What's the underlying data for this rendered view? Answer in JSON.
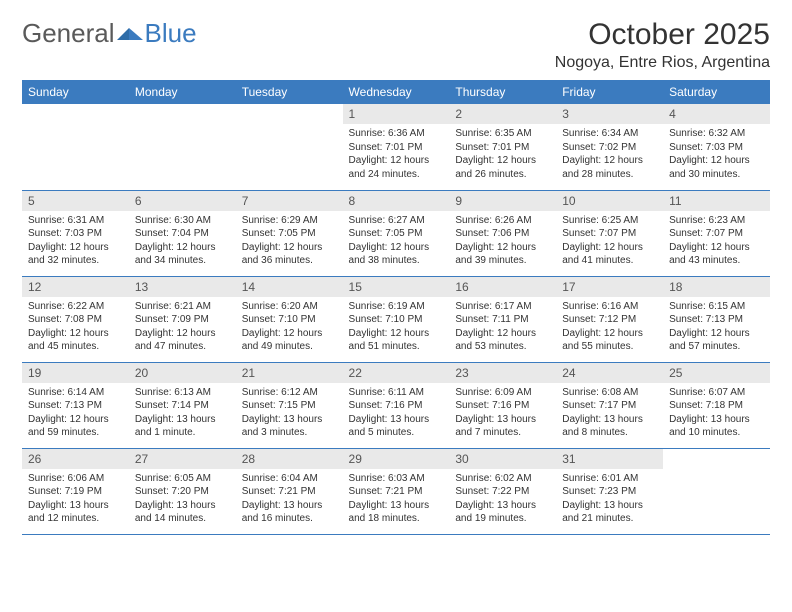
{
  "logo": {
    "part1": "General",
    "part2": "Blue"
  },
  "title": "October 2025",
  "location": "Nogoya, Entre Rios, Argentina",
  "colors": {
    "header_bg": "#3b7bbf",
    "header_fg": "#ffffff",
    "daynum_bg": "#e9e9e9",
    "row_border": "#3b7bbf",
    "logo_gray": "#5a5a5a",
    "logo_blue": "#3b7bbf"
  },
  "weekdays": [
    "Sunday",
    "Monday",
    "Tuesday",
    "Wednesday",
    "Thursday",
    "Friday",
    "Saturday"
  ],
  "weeks": [
    [
      null,
      null,
      null,
      {
        "day": "1",
        "sunrise": "Sunrise: 6:36 AM",
        "sunset": "Sunset: 7:01 PM",
        "daylight": "Daylight: 12 hours and 24 minutes."
      },
      {
        "day": "2",
        "sunrise": "Sunrise: 6:35 AM",
        "sunset": "Sunset: 7:01 PM",
        "daylight": "Daylight: 12 hours and 26 minutes."
      },
      {
        "day": "3",
        "sunrise": "Sunrise: 6:34 AM",
        "sunset": "Sunset: 7:02 PM",
        "daylight": "Daylight: 12 hours and 28 minutes."
      },
      {
        "day": "4",
        "sunrise": "Sunrise: 6:32 AM",
        "sunset": "Sunset: 7:03 PM",
        "daylight": "Daylight: 12 hours and 30 minutes."
      }
    ],
    [
      {
        "day": "5",
        "sunrise": "Sunrise: 6:31 AM",
        "sunset": "Sunset: 7:03 PM",
        "daylight": "Daylight: 12 hours and 32 minutes."
      },
      {
        "day": "6",
        "sunrise": "Sunrise: 6:30 AM",
        "sunset": "Sunset: 7:04 PM",
        "daylight": "Daylight: 12 hours and 34 minutes."
      },
      {
        "day": "7",
        "sunrise": "Sunrise: 6:29 AM",
        "sunset": "Sunset: 7:05 PM",
        "daylight": "Daylight: 12 hours and 36 minutes."
      },
      {
        "day": "8",
        "sunrise": "Sunrise: 6:27 AM",
        "sunset": "Sunset: 7:05 PM",
        "daylight": "Daylight: 12 hours and 38 minutes."
      },
      {
        "day": "9",
        "sunrise": "Sunrise: 6:26 AM",
        "sunset": "Sunset: 7:06 PM",
        "daylight": "Daylight: 12 hours and 39 minutes."
      },
      {
        "day": "10",
        "sunrise": "Sunrise: 6:25 AM",
        "sunset": "Sunset: 7:07 PM",
        "daylight": "Daylight: 12 hours and 41 minutes."
      },
      {
        "day": "11",
        "sunrise": "Sunrise: 6:23 AM",
        "sunset": "Sunset: 7:07 PM",
        "daylight": "Daylight: 12 hours and 43 minutes."
      }
    ],
    [
      {
        "day": "12",
        "sunrise": "Sunrise: 6:22 AM",
        "sunset": "Sunset: 7:08 PM",
        "daylight": "Daylight: 12 hours and 45 minutes."
      },
      {
        "day": "13",
        "sunrise": "Sunrise: 6:21 AM",
        "sunset": "Sunset: 7:09 PM",
        "daylight": "Daylight: 12 hours and 47 minutes."
      },
      {
        "day": "14",
        "sunrise": "Sunrise: 6:20 AM",
        "sunset": "Sunset: 7:10 PM",
        "daylight": "Daylight: 12 hours and 49 minutes."
      },
      {
        "day": "15",
        "sunrise": "Sunrise: 6:19 AM",
        "sunset": "Sunset: 7:10 PM",
        "daylight": "Daylight: 12 hours and 51 minutes."
      },
      {
        "day": "16",
        "sunrise": "Sunrise: 6:17 AM",
        "sunset": "Sunset: 7:11 PM",
        "daylight": "Daylight: 12 hours and 53 minutes."
      },
      {
        "day": "17",
        "sunrise": "Sunrise: 6:16 AM",
        "sunset": "Sunset: 7:12 PM",
        "daylight": "Daylight: 12 hours and 55 minutes."
      },
      {
        "day": "18",
        "sunrise": "Sunrise: 6:15 AM",
        "sunset": "Sunset: 7:13 PM",
        "daylight": "Daylight: 12 hours and 57 minutes."
      }
    ],
    [
      {
        "day": "19",
        "sunrise": "Sunrise: 6:14 AM",
        "sunset": "Sunset: 7:13 PM",
        "daylight": "Daylight: 12 hours and 59 minutes."
      },
      {
        "day": "20",
        "sunrise": "Sunrise: 6:13 AM",
        "sunset": "Sunset: 7:14 PM",
        "daylight": "Daylight: 13 hours and 1 minute."
      },
      {
        "day": "21",
        "sunrise": "Sunrise: 6:12 AM",
        "sunset": "Sunset: 7:15 PM",
        "daylight": "Daylight: 13 hours and 3 minutes."
      },
      {
        "day": "22",
        "sunrise": "Sunrise: 6:11 AM",
        "sunset": "Sunset: 7:16 PM",
        "daylight": "Daylight: 13 hours and 5 minutes."
      },
      {
        "day": "23",
        "sunrise": "Sunrise: 6:09 AM",
        "sunset": "Sunset: 7:16 PM",
        "daylight": "Daylight: 13 hours and 7 minutes."
      },
      {
        "day": "24",
        "sunrise": "Sunrise: 6:08 AM",
        "sunset": "Sunset: 7:17 PM",
        "daylight": "Daylight: 13 hours and 8 minutes."
      },
      {
        "day": "25",
        "sunrise": "Sunrise: 6:07 AM",
        "sunset": "Sunset: 7:18 PM",
        "daylight": "Daylight: 13 hours and 10 minutes."
      }
    ],
    [
      {
        "day": "26",
        "sunrise": "Sunrise: 6:06 AM",
        "sunset": "Sunset: 7:19 PM",
        "daylight": "Daylight: 13 hours and 12 minutes."
      },
      {
        "day": "27",
        "sunrise": "Sunrise: 6:05 AM",
        "sunset": "Sunset: 7:20 PM",
        "daylight": "Daylight: 13 hours and 14 minutes."
      },
      {
        "day": "28",
        "sunrise": "Sunrise: 6:04 AM",
        "sunset": "Sunset: 7:21 PM",
        "daylight": "Daylight: 13 hours and 16 minutes."
      },
      {
        "day": "29",
        "sunrise": "Sunrise: 6:03 AM",
        "sunset": "Sunset: 7:21 PM",
        "daylight": "Daylight: 13 hours and 18 minutes."
      },
      {
        "day": "30",
        "sunrise": "Sunrise: 6:02 AM",
        "sunset": "Sunset: 7:22 PM",
        "daylight": "Daylight: 13 hours and 19 minutes."
      },
      {
        "day": "31",
        "sunrise": "Sunrise: 6:01 AM",
        "sunset": "Sunset: 7:23 PM",
        "daylight": "Daylight: 13 hours and 21 minutes."
      },
      null
    ]
  ]
}
